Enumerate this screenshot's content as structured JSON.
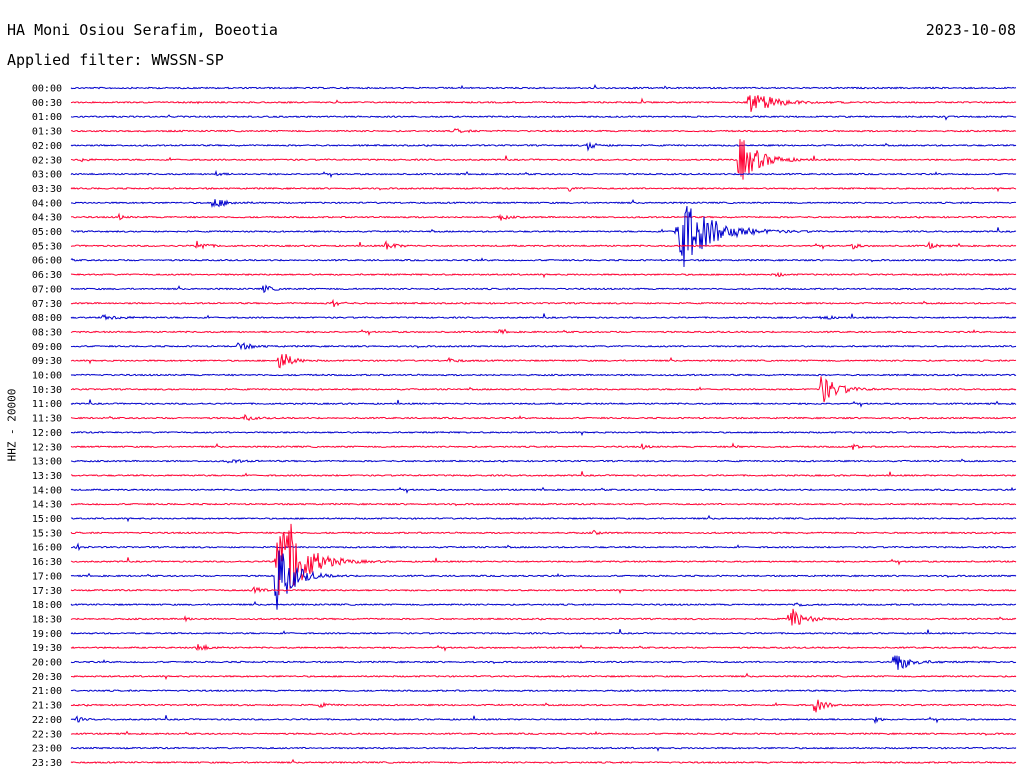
{
  "header": {
    "station": "HA Moni Osiou Serafim, Boeotia",
    "date": "2023-10-08",
    "filter": "Applied filter: WWSSN-SP"
  },
  "chart_data": {
    "type": "line",
    "ylabel": "HHZ - 20000",
    "row_labels": [
      "00:00",
      "00:30",
      "01:00",
      "01:30",
      "02:00",
      "02:30",
      "03:00",
      "03:30",
      "04:00",
      "04:30",
      "05:00",
      "05:30",
      "06:00",
      "06:30",
      "07:00",
      "07:30",
      "08:00",
      "08:30",
      "09:00",
      "09:30",
      "10:00",
      "10:30",
      "11:00",
      "11:30",
      "12:00",
      "12:30",
      "13:00",
      "13:30",
      "14:00",
      "14:30",
      "15:00",
      "15:30",
      "16:00",
      "16:30",
      "17:00",
      "17:30",
      "18:00",
      "18:30",
      "19:00",
      "19:30",
      "20:00",
      "20:30",
      "21:00",
      "21:30",
      "22:00",
      "22:30",
      "23:00",
      "23:30"
    ],
    "trace_colors": [
      "#0000cc",
      "#ff0033"
    ],
    "x_range_minutes": [
      0,
      30
    ],
    "events": [
      {
        "row": 1,
        "minute": 21.5,
        "amp": 14,
        "dur": 1.4
      },
      {
        "row": 3,
        "minute": 12.2,
        "amp": 2,
        "dur": 0.6
      },
      {
        "row": 4,
        "minute": 16.4,
        "amp": 4,
        "dur": 0.6
      },
      {
        "row": 5,
        "minute": 21.2,
        "amp": 26,
        "dur": 1.2
      },
      {
        "row": 5,
        "minute": 0.3,
        "amp": 2,
        "dur": 0.4
      },
      {
        "row": 6,
        "minute": 4.6,
        "amp": 3,
        "dur": 0.3
      },
      {
        "row": 7,
        "minute": 15.8,
        "amp": 3,
        "dur": 0.3
      },
      {
        "row": 8,
        "minute": 4.5,
        "amp": 6,
        "dur": 0.8
      },
      {
        "row": 9,
        "minute": 1.5,
        "amp": 3,
        "dur": 0.3
      },
      {
        "row": 9,
        "minute": 13.6,
        "amp": 4,
        "dur": 0.4
      },
      {
        "row": 10,
        "minute": 19.2,
        "amp": 48,
        "dur": 1.8
      },
      {
        "row": 11,
        "minute": 4.0,
        "amp": 6,
        "dur": 0.5
      },
      {
        "row": 11,
        "minute": 10.0,
        "amp": 5,
        "dur": 0.5
      },
      {
        "row": 11,
        "minute": 24.8,
        "amp": 3,
        "dur": 0.4
      },
      {
        "row": 11,
        "minute": 27.2,
        "amp": 4,
        "dur": 0.4
      },
      {
        "row": 13,
        "minute": 22.4,
        "amp": 3,
        "dur": 0.3
      },
      {
        "row": 14,
        "minute": 6.1,
        "amp": 4,
        "dur": 0.5
      },
      {
        "row": 15,
        "minute": 8.3,
        "amp": 4,
        "dur": 0.4
      },
      {
        "row": 16,
        "minute": 1.0,
        "amp": 2,
        "dur": 1.2
      },
      {
        "row": 16,
        "minute": 23.8,
        "amp": 2,
        "dur": 0.8
      },
      {
        "row": 17,
        "minute": 13.6,
        "amp": 2,
        "dur": 0.3
      },
      {
        "row": 18,
        "minute": 5.3,
        "amp": 4,
        "dur": 0.8
      },
      {
        "row": 19,
        "minute": 6.6,
        "amp": 14,
        "dur": 0.6
      },
      {
        "row": 19,
        "minute": 12.0,
        "amp": 2,
        "dur": 0.6
      },
      {
        "row": 21,
        "minute": 23.8,
        "amp": 16,
        "dur": 1.0
      },
      {
        "row": 23,
        "minute": 5.5,
        "amp": 3,
        "dur": 0.5
      },
      {
        "row": 25,
        "minute": 18.1,
        "amp": 3,
        "dur": 0.3
      },
      {
        "row": 25,
        "minute": 21.0,
        "amp": 3,
        "dur": 0.3
      },
      {
        "row": 25,
        "minute": 24.8,
        "amp": 3,
        "dur": 0.3
      },
      {
        "row": 26,
        "minute": 5.0,
        "amp": 2,
        "dur": 0.8
      },
      {
        "row": 31,
        "minute": 16.6,
        "amp": 2,
        "dur": 0.3
      },
      {
        "row": 32,
        "minute": 0.2,
        "amp": 3,
        "dur": 0.3
      },
      {
        "row": 33,
        "minute": 6.5,
        "amp": 60,
        "dur": 1.4
      },
      {
        "row": 33,
        "minute": 7.0,
        "amp": 14,
        "dur": 0.8
      },
      {
        "row": 34,
        "minute": 6.5,
        "amp": 40,
        "dur": 1.0
      },
      {
        "row": 35,
        "minute": 5.8,
        "amp": 5,
        "dur": 0.4
      },
      {
        "row": 36,
        "minute": 23.0,
        "amp": 3,
        "dur": 0.4
      },
      {
        "row": 37,
        "minute": 22.8,
        "amp": 14,
        "dur": 0.8
      },
      {
        "row": 37,
        "minute": 3.6,
        "amp": 3,
        "dur": 0.3
      },
      {
        "row": 39,
        "minute": 4.0,
        "amp": 5,
        "dur": 0.5
      },
      {
        "row": 40,
        "minute": 26.1,
        "amp": 12,
        "dur": 0.9
      },
      {
        "row": 43,
        "minute": 23.6,
        "amp": 8,
        "dur": 0.6
      },
      {
        "row": 43,
        "minute": 7.9,
        "amp": 2,
        "dur": 0.5
      },
      {
        "row": 44,
        "minute": 0.2,
        "amp": 3,
        "dur": 0.3
      },
      {
        "row": 44,
        "minute": 25.5,
        "amp": 3,
        "dur": 0.3
      }
    ]
  }
}
